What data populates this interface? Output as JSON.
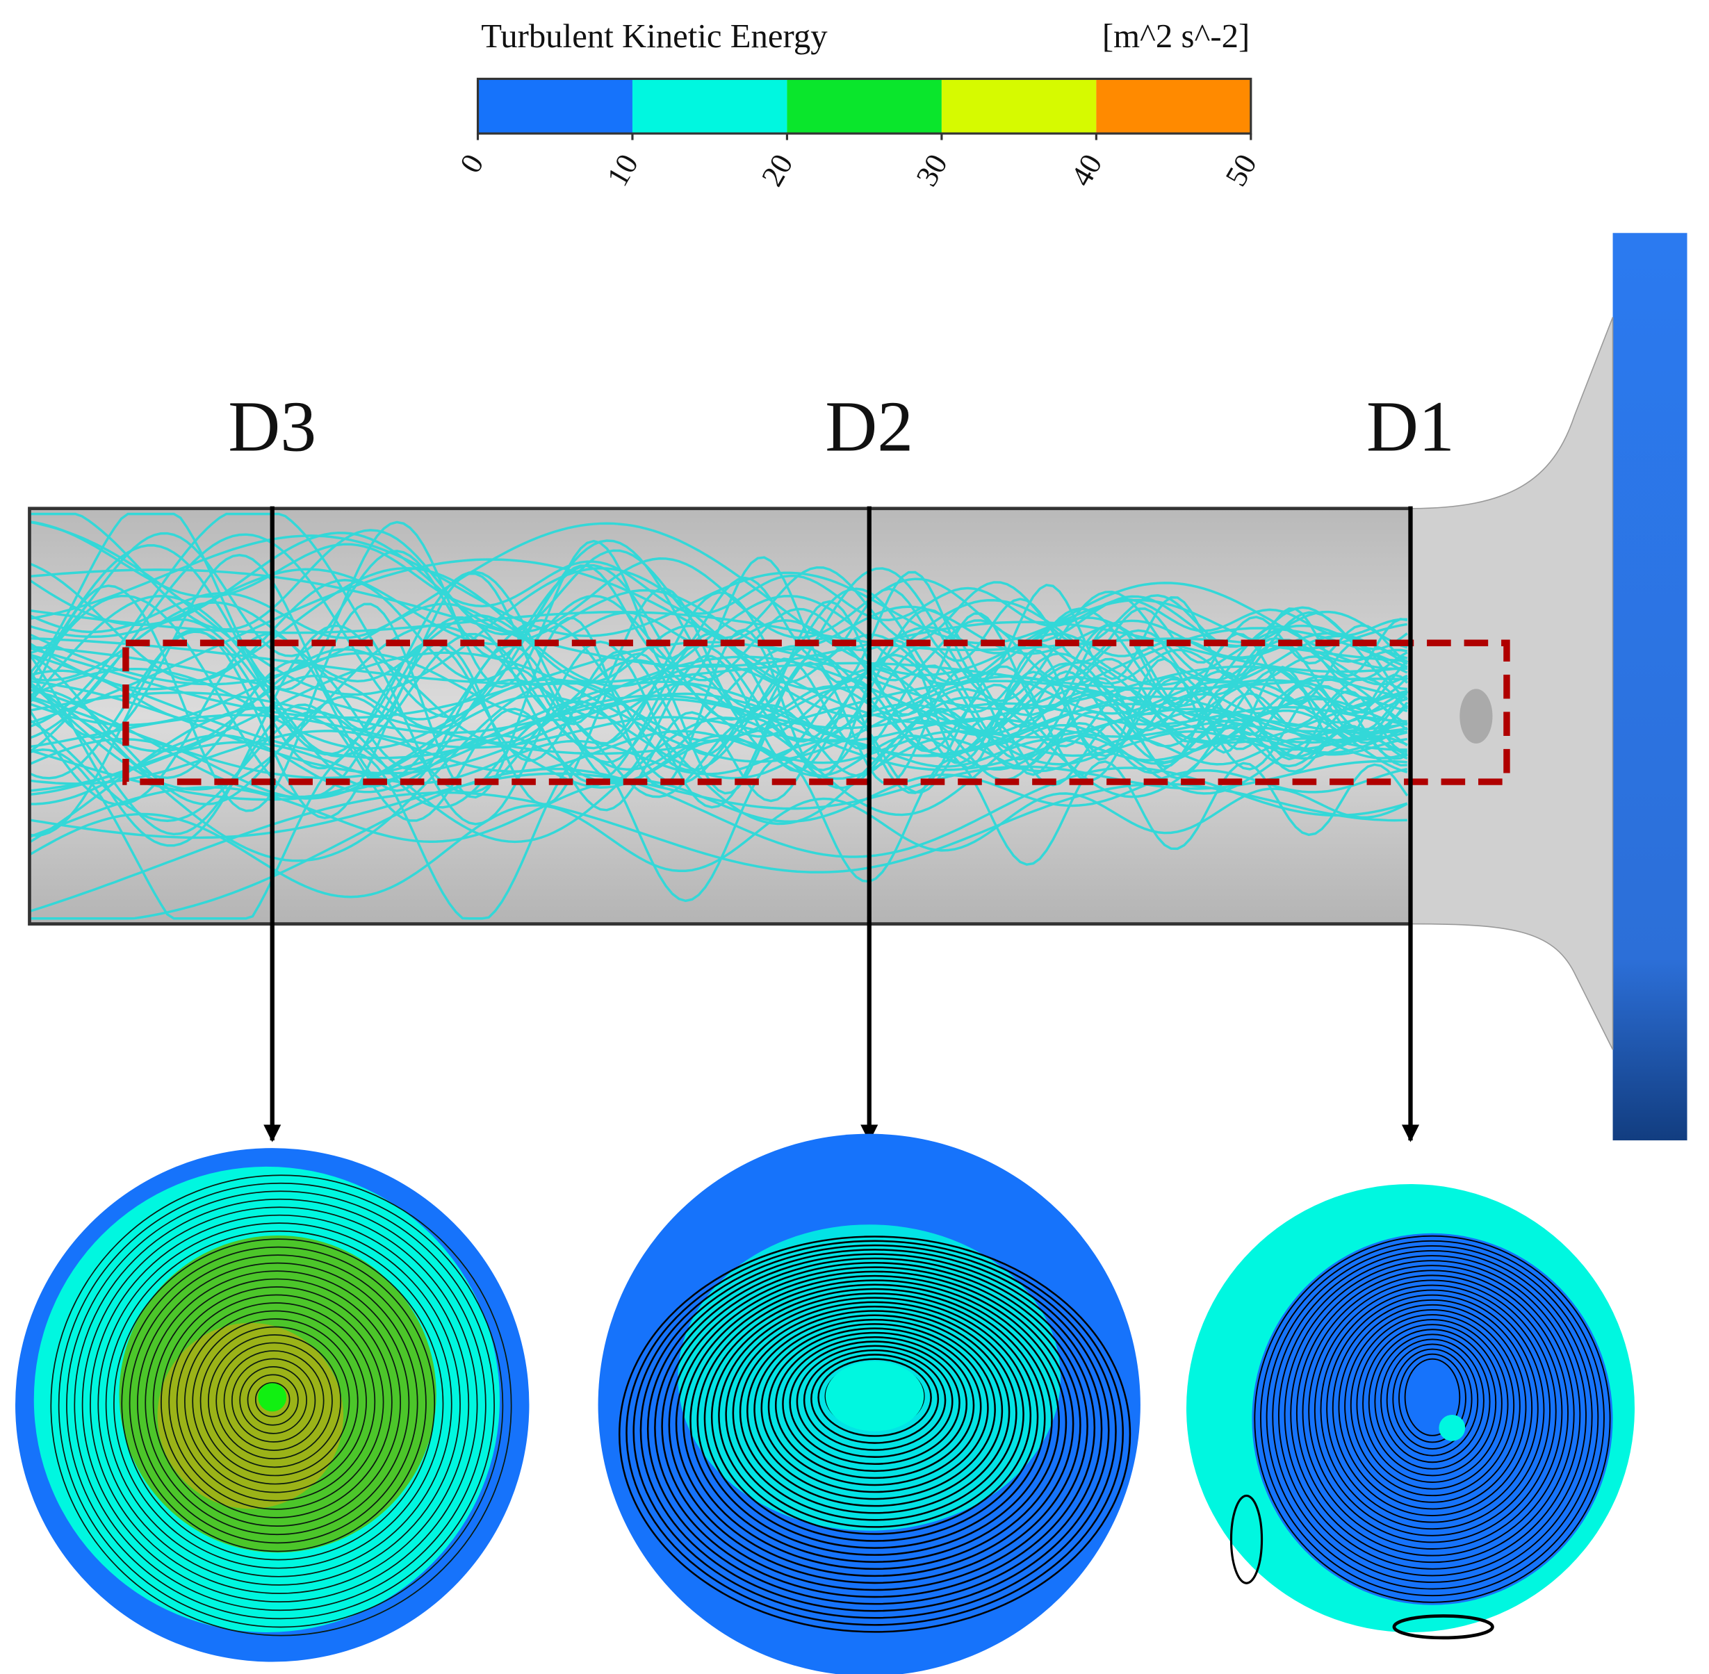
{
  "colorbar": {
    "title": "Turbulent Kinetic Energy",
    "units": "[m^2 s^-2]",
    "lim": [
      0,
      50
    ],
    "ticks": [
      0,
      10,
      20,
      30,
      40,
      50
    ],
    "colors": [
      "#1673fb",
      "#00f7e0",
      "#0ae62c",
      "#d6fa00",
      "#ff8a00"
    ]
  },
  "sections": [
    {
      "label": "D3"
    },
    {
      "label": "D2"
    },
    {
      "label": "D1"
    }
  ]
}
